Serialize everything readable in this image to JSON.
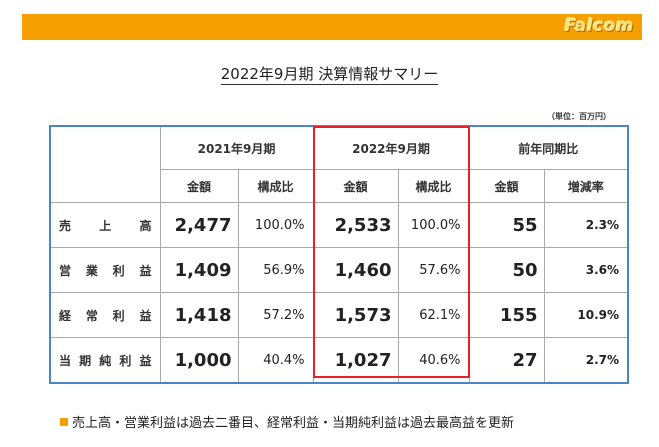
{
  "logo": "Falcom",
  "title": "2022年9月期 決算情報サマリー",
  "unit_note": "（単位：百万円）",
  "headers": {
    "periods": [
      "2021年9月期",
      "2022年9月期",
      "前年同期比"
    ],
    "sub": [
      "金額",
      "構成比",
      "金額",
      "構成比",
      "金額",
      "増減率"
    ]
  },
  "rows": [
    {
      "label_chars": [
        "売",
        "上",
        "高"
      ],
      "label": "売上高",
      "amt_2021": "2,477",
      "ratio_2021": "100.0%",
      "amt_2022": "2,533",
      "ratio_2022": "100.0%",
      "yoy_amt": "55",
      "yoy_rate": "2.3%"
    },
    {
      "label_chars": [
        "営",
        "業",
        "利",
        "益"
      ],
      "label": "営業利益",
      "amt_2021": "1,409",
      "ratio_2021": "56.9%",
      "amt_2022": "1,460",
      "ratio_2022": "57.6%",
      "yoy_amt": "50",
      "yoy_rate": "3.6%"
    },
    {
      "label_chars": [
        "経",
        "常",
        "利",
        "益"
      ],
      "label": "経常利益",
      "amt_2021": "1,418",
      "ratio_2021": "57.2%",
      "amt_2022": "1,573",
      "ratio_2022": "62.1%",
      "yoy_amt": "155",
      "yoy_rate": "10.9%"
    },
    {
      "label_chars": [
        "当",
        "期",
        "純",
        "利",
        "益"
      ],
      "label": "当期純利益",
      "amt_2021": "1,000",
      "ratio_2021": "40.4%",
      "amt_2022": "1,027",
      "ratio_2022": "40.6%",
      "yoy_amt": "27",
      "yoy_rate": "2.7%"
    }
  ],
  "note": "売上高・営業利益は過去二番目、経常利益・当期純利益は過去最高益を更新",
  "colors": {
    "accent_bar": "#f5a000",
    "table_border": "#4a86c5",
    "highlight_box": "#e8202a"
  }
}
